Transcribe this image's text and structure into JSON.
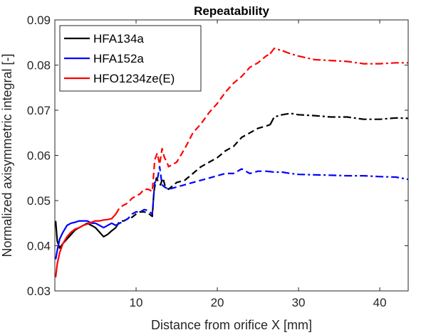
{
  "chart_data": {
    "type": "line",
    "title": "Repeatability",
    "xlabel": "Distance from orifice X [mm]",
    "ylabel": "Normalized axisymmetric integral [-]",
    "xlim": [
      0,
      43.5
    ],
    "ylim": [
      0.03,
      0.09
    ],
    "xticks": [
      10,
      20,
      30,
      40
    ],
    "yticks": [
      0.03,
      0.04,
      0.05,
      0.06,
      0.07,
      0.08,
      0.09
    ],
    "xtick_labels": [
      "10",
      "20",
      "30",
      "40"
    ],
    "ytick_labels": [
      "0.03",
      "0.04",
      "0.05",
      "0.06",
      "0.07",
      "0.08",
      "0.09"
    ],
    "grid": false,
    "legend_position": "top-left",
    "series": [
      {
        "name": "HFA134a",
        "color": "#000000",
        "x": [
          0.1,
          0.3,
          0.6,
          1.0,
          1.5,
          2.0,
          2.5,
          3.0,
          3.5,
          4.0,
          4.5,
          5.0,
          5.5,
          6.0,
          6.5,
          7.0,
          7.5,
          8.0,
          8.5,
          9.0,
          9.5,
          10.0,
          10.5,
          11.0,
          11.5,
          12.0,
          12.2,
          12.5,
          12.8,
          13.0,
          13.3,
          13.6,
          14.0,
          15.0,
          16.0,
          17.0,
          18.0,
          19.0,
          20.0,
          21.0,
          22.0,
          23.0,
          24.0,
          25.0,
          26.0,
          26.5,
          27.0,
          28.0,
          29.0,
          30.0,
          32.0,
          34.0,
          36.0,
          38.0,
          40.0,
          42.0,
          43.5
        ],
        "y": [
          0.0455,
          0.041,
          0.0395,
          0.0405,
          0.0415,
          0.0425,
          0.0435,
          0.044,
          0.0445,
          0.045,
          0.0445,
          0.044,
          0.043,
          0.042,
          0.0425,
          0.0433,
          0.044,
          0.0455,
          0.0455,
          0.046,
          0.0463,
          0.047,
          0.0475,
          0.0475,
          0.0472,
          0.0465,
          0.052,
          0.055,
          0.054,
          0.0535,
          0.055,
          0.053,
          0.0525,
          0.054,
          0.0545,
          0.056,
          0.0575,
          0.0585,
          0.0595,
          0.061,
          0.062,
          0.064,
          0.065,
          0.066,
          0.0665,
          0.0668,
          0.0685,
          0.069,
          0.0693,
          0.069,
          0.0688,
          0.0685,
          0.0685,
          0.068,
          0.068,
          0.0683,
          0.0682
        ]
      },
      {
        "name": "HFA152a",
        "color": "#0000ff",
        "x": [
          0.1,
          0.3,
          0.6,
          1.0,
          1.5,
          2.0,
          2.5,
          3.0,
          3.5,
          4.0,
          4.5,
          5.0,
          5.5,
          6.0,
          6.5,
          7.0,
          7.5,
          8.0,
          8.5,
          9.0,
          9.5,
          10.0,
          10.5,
          11.0,
          11.5,
          12.0,
          12.3,
          12.6,
          12.9,
          13.2,
          13.5,
          14.0,
          15.0,
          16.0,
          17.0,
          18.0,
          19.0,
          20.0,
          21.0,
          22.0,
          23.0,
          24.0,
          25.0,
          26.0,
          27.0,
          28.0,
          29.0,
          30.0,
          32.0,
          34.0,
          36.0,
          38.0,
          40.0,
          42.0,
          43.5
        ],
        "y": [
          0.037,
          0.039,
          0.0415,
          0.043,
          0.0445,
          0.045,
          0.0452,
          0.0455,
          0.0455,
          0.0455,
          0.045,
          0.045,
          0.0445,
          0.044,
          0.0445,
          0.045,
          0.0445,
          0.045,
          0.0455,
          0.046,
          0.047,
          0.0475,
          0.0475,
          0.048,
          0.0478,
          0.047,
          0.054,
          0.0545,
          0.0575,
          0.0535,
          0.053,
          0.0525,
          0.053,
          0.0535,
          0.054,
          0.0545,
          0.055,
          0.0555,
          0.056,
          0.056,
          0.057,
          0.056,
          0.0565,
          0.0565,
          0.0563,
          0.0563,
          0.056,
          0.0558,
          0.0557,
          0.0556,
          0.0555,
          0.0555,
          0.0553,
          0.0552,
          0.0547
        ]
      },
      {
        "name": "HFO1234ze(E)",
        "color": "#ff0000",
        "x": [
          0.1,
          0.3,
          0.6,
          1.0,
          1.5,
          2.0,
          2.5,
          3.0,
          3.5,
          4.0,
          4.5,
          5.0,
          5.5,
          6.0,
          6.5,
          7.0,
          7.5,
          8.0,
          8.5,
          9.0,
          9.5,
          10.0,
          10.5,
          11.0,
          11.5,
          12.0,
          12.3,
          12.6,
          12.9,
          13.2,
          13.5,
          13.8,
          14.0,
          15.0,
          16.0,
          17.0,
          18.0,
          19.0,
          20.0,
          21.0,
          22.0,
          23.0,
          24.0,
          25.0,
          26.0,
          26.5,
          27.0,
          28.0,
          29.0,
          30.0,
          32.0,
          34.0,
          36.0,
          38.0,
          40.0,
          42.0,
          43.5
        ],
        "y": [
          0.033,
          0.036,
          0.0385,
          0.0405,
          0.042,
          0.043,
          0.0437,
          0.044,
          0.0445,
          0.0448,
          0.0452,
          0.0455,
          0.0455,
          0.0457,
          0.0458,
          0.046,
          0.047,
          0.0485,
          0.049,
          0.0495,
          0.0505,
          0.051,
          0.0515,
          0.0525,
          0.0525,
          0.052,
          0.059,
          0.0605,
          0.058,
          0.0615,
          0.0595,
          0.0585,
          0.0575,
          0.0585,
          0.0615,
          0.065,
          0.067,
          0.0695,
          0.0715,
          0.074,
          0.076,
          0.0775,
          0.0795,
          0.0805,
          0.082,
          0.0825,
          0.0837,
          0.0832,
          0.0825,
          0.082,
          0.0812,
          0.081,
          0.0808,
          0.0803,
          0.0803,
          0.0805,
          0.0805
        ]
      }
    ]
  }
}
